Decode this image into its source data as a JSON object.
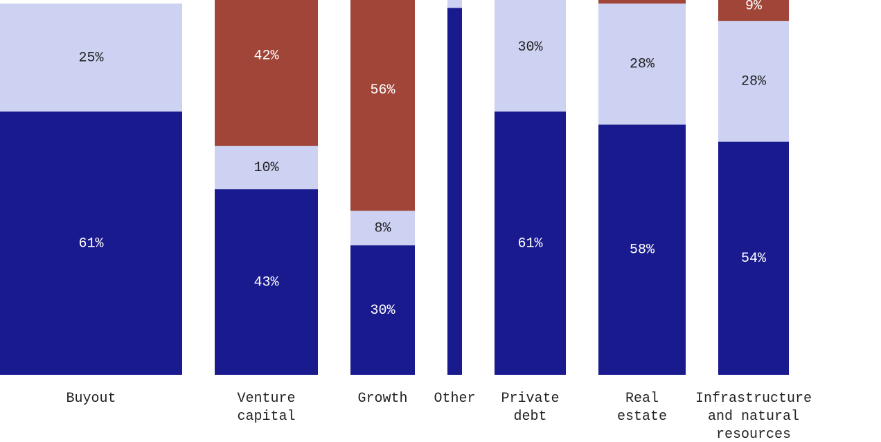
{
  "chart_data": {
    "type": "stacked_bar",
    "categories": [
      [
        "Buyout"
      ],
      [
        "Venture",
        "capital"
      ],
      [
        "Growth"
      ],
      [
        "Other"
      ],
      [
        "Private",
        "debt"
      ],
      [
        "Real",
        "estate"
      ],
      [
        "Infrastructure",
        "and natural",
        "resources"
      ]
    ],
    "ylim": [
      0,
      100
    ],
    "series": [
      {
        "color": "#1a1a8f",
        "values": [
          61,
          43,
          30,
          85,
          61,
          58,
          54
        ],
        "value_labels": [
          "61%",
          "43%",
          "30%",
          null,
          "61%",
          "58%",
          "54%"
        ]
      },
      {
        "color": "#cdd2f3",
        "values": [
          25,
          10,
          8,
          2,
          30,
          28,
          28
        ],
        "value_labels": [
          "25%",
          "10%",
          "8%",
          null,
          "30%",
          "28%",
          "28%"
        ]
      },
      {
        "color": "#a04538",
        "values": [
          null,
          42,
          56,
          null,
          null,
          2,
          9
        ],
        "value_labels": [
          null,
          "42%",
          "56%",
          null,
          null,
          null,
          "9%"
        ]
      }
    ]
  }
}
